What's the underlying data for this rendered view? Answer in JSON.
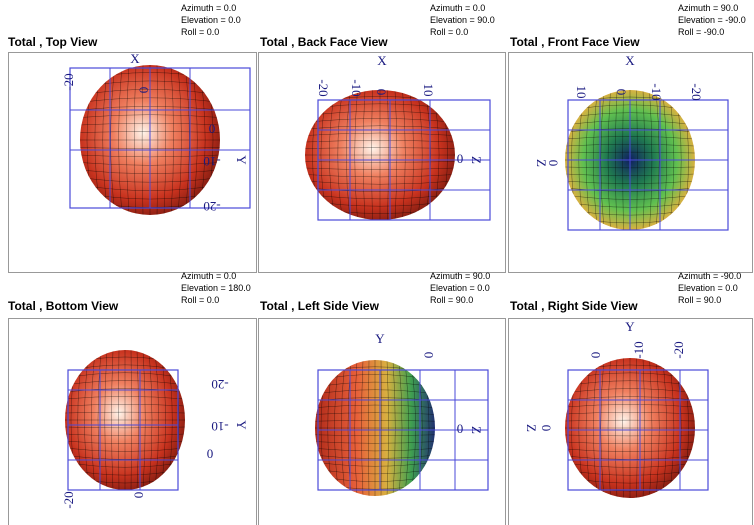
{
  "panels": [
    {
      "title": "Total , Top View",
      "azimuth": "Azimuth = 0.0",
      "elevation": "Elevation = 0.0",
      "roll": "Roll = 0.0",
      "labels": [
        "X",
        "-20",
        "0",
        "0",
        "-10",
        "Y",
        "-20"
      ]
    },
    {
      "title": "Total , Back Face View",
      "azimuth": "Azimuth = 0.0",
      "elevation": "Elevation = 90.0",
      "roll": "Roll = 0.0",
      "labels": [
        "X",
        "-20",
        "-10",
        "0",
        "10",
        "0",
        "Z"
      ]
    },
    {
      "title": "Total , Front Face View",
      "azimuth": "Azimuth = 90.0",
      "elevation": "Elevation = -90.0",
      "roll": "Roll = -90.0",
      "labels": [
        "X",
        "10",
        "0",
        "-10",
        "-20",
        "Z",
        "0"
      ]
    },
    {
      "title": "Total , Bottom View",
      "azimuth": "Azimuth = 0.0",
      "elevation": "Elevation = 180.0",
      "roll": "Roll = 0.0",
      "labels": [
        "-20",
        "-10",
        "Y",
        "0",
        "-20",
        "0"
      ]
    },
    {
      "title": "Total , Left Side View",
      "azimuth": "Azimuth = 90.0",
      "elevation": "Elevation = 0.0",
      "roll": "Roll = 90.0",
      "labels": [
        "Y",
        "0",
        "0",
        "Z"
      ]
    },
    {
      "title": "Total , Right Side View",
      "azimuth": "Azimuth = -90.0",
      "elevation": "Elevation = 0.0",
      "roll": "Roll = 90.0",
      "labels": [
        "Y",
        "0",
        "-10",
        "-20",
        "Z",
        "0"
      ]
    }
  ]
}
